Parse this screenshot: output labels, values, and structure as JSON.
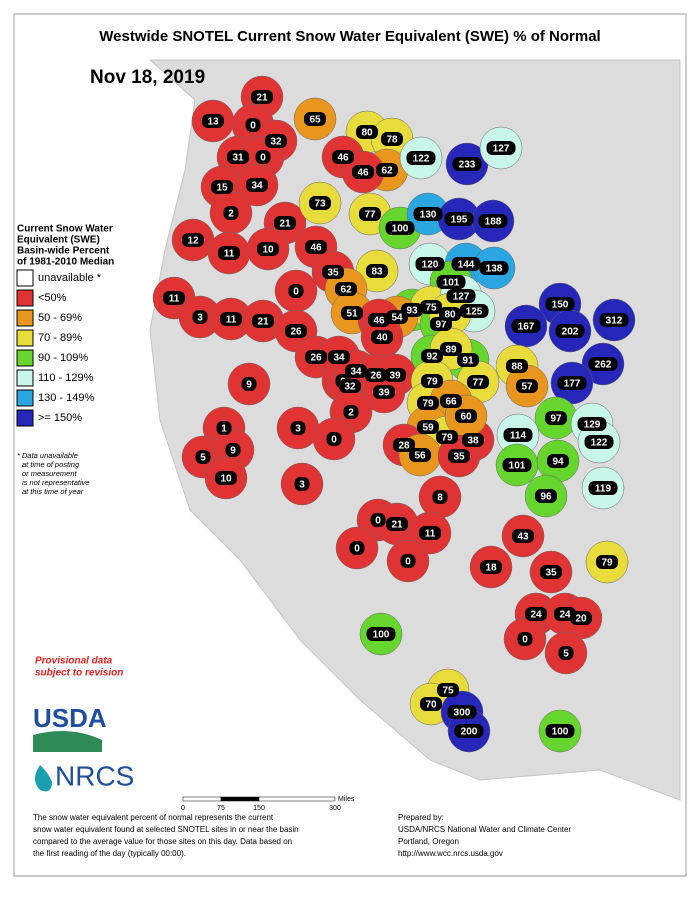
{
  "title": "Westwide SNOTEL Current Snow Water Equivalent (SWE) % of Normal",
  "date": "Nov 18, 2019",
  "legend": {
    "title": [
      "Current Snow Water",
      "Equivalent (SWE)",
      "Basin-wide Percent",
      "of 1981-2010 Median"
    ],
    "items": [
      {
        "label": "unavailable *",
        "color": "#ffffff"
      },
      {
        "label": "<50%",
        "color": "#e03434",
        "max": 50
      },
      {
        "label": "50 - 69%",
        "color": "#e8961e",
        "min": 50
      },
      {
        "label": "70 - 89%",
        "color": "#e8dc3c",
        "min": 70
      },
      {
        "label": "90 - 109%",
        "color": "#66d62e",
        "min": 90
      },
      {
        "label": "110 - 129%",
        "color": "#c8f7ea",
        "min": 110
      },
      {
        "label": "130 - 149%",
        "color": "#2aa6e0",
        "min": 130
      },
      {
        "label": ">= 150%",
        "color": "#2626b8",
        "min": 150
      }
    ],
    "note": [
      "* Data unavailable",
      "at time of posting",
      "or measurement",
      "is not representative",
      "at this time of year"
    ]
  },
  "provisional": [
    "Provisional data",
    "subject to revision"
  ],
  "logos": {
    "usda": "USDA",
    "nrcs": "NRCS"
  },
  "basins": [
    13,
    21,
    0,
    32,
    65,
    31,
    0,
    15,
    34,
    2,
    12,
    21,
    11,
    10,
    46,
    0,
    11,
    3,
    11,
    21,
    26,
    80,
    78,
    46,
    62,
    46,
    122,
    233,
    127,
    73,
    77,
    100,
    130,
    195,
    188,
    35,
    83,
    62,
    120,
    144,
    138,
    101,
    51,
    93,
    75,
    97,
    127,
    125,
    80,
    54,
    46,
    40,
    150,
    167,
    202,
    312,
    262,
    26,
    34,
    91,
    88,
    92,
    89,
    9,
    0,
    32,
    34,
    26,
    39,
    39,
    79,
    77,
    57,
    177,
    79,
    66,
    3,
    2,
    0,
    1,
    59,
    79,
    38,
    60,
    97,
    129,
    122,
    114,
    28,
    56,
    35,
    5,
    9,
    10,
    3,
    101,
    94,
    119,
    96,
    8,
    0,
    21,
    11,
    43,
    0,
    0,
    18,
    35,
    79,
    24,
    24,
    20,
    0,
    5,
    100,
    75,
    70,
    300,
    200,
    100
  ],
  "scale_bar": {
    "ticks": [
      0,
      75,
      150,
      300
    ],
    "unit": "Miles"
  },
  "description": [
    "The snow water equivalent percent of normal represents the current",
    "snow water equivalent found at selected SNOTEL sites in or near the basin",
    "compared to the average value for those sites on this day. Data based on",
    "the first reading of the day (typically 00:00)."
  ],
  "prepared": [
    "Prepared by:",
    "USDA/NRCS National Water and Climate Center",
    "Portland, Oregon",
    "http://www.wcc.nrcs.usda.gov"
  ]
}
